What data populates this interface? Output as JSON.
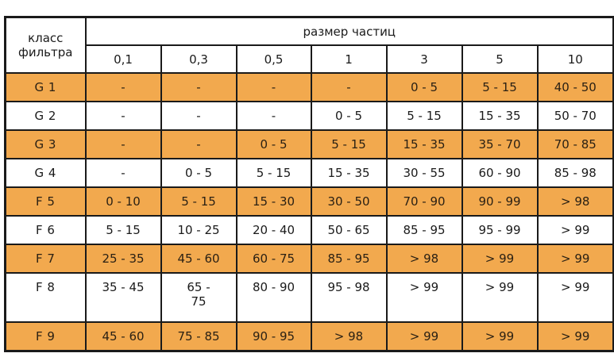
{
  "table": {
    "corner_header": "класс фильтра",
    "group_header": "размер частиц",
    "particle_sizes": [
      "0,1",
      "0,3",
      "0,5",
      "1",
      "3",
      "5",
      "10"
    ],
    "row_colors": {
      "highlight": "#f2a94e",
      "plain": "#ffffff",
      "border": "#1a1a1a"
    },
    "rows": [
      {
        "class": "G 1",
        "values": [
          "-",
          "-",
          "-",
          "-",
          "0 - 5",
          "5 - 15",
          "40 - 50"
        ],
        "style": "orange"
      },
      {
        "class": "G 2",
        "values": [
          "-",
          "-",
          "-",
          "0 - 5",
          "5 - 15",
          "15 - 35",
          "50 - 70"
        ],
        "style": "white"
      },
      {
        "class": "G 3",
        "values": [
          "-",
          "-",
          "0 - 5",
          "5 - 15",
          "15 - 35",
          "35 - 70",
          "70 - 85"
        ],
        "style": "orange"
      },
      {
        "class": "G 4",
        "values": [
          "-",
          "0 - 5",
          "5 - 15",
          "15 - 35",
          "30 - 55",
          "60 - 90",
          "85 - 98"
        ],
        "style": "white"
      },
      {
        "class": "F 5",
        "values": [
          "0 - 10",
          "5 - 15",
          "15 - 30",
          "30 - 50",
          "70 - 90",
          "90 - 99",
          "> 98"
        ],
        "style": "orange"
      },
      {
        "class": "F 6",
        "values": [
          "5 - 15",
          "10 - 25",
          "20 - 40",
          "50 - 65",
          "85 - 95",
          "95 - 99",
          "> 99"
        ],
        "style": "white"
      },
      {
        "class": "F 7",
        "values": [
          "25 - 35",
          "45 - 60",
          "60 - 75",
          "85 - 95",
          "> 98",
          "> 99",
          "> 99"
        ],
        "style": "orange"
      },
      {
        "class": "F 8",
        "values": [
          "35 - 45",
          "65 - 75",
          "80 - 90",
          "95 - 98",
          "> 99",
          "> 99",
          "> 99"
        ],
        "style": "white"
      },
      {
        "class": "F 9",
        "values": [
          "45 - 60",
          "75 - 85",
          "90 - 95",
          "> 98",
          "> 99",
          "> 99",
          "> 99"
        ],
        "style": "orange"
      }
    ]
  }
}
